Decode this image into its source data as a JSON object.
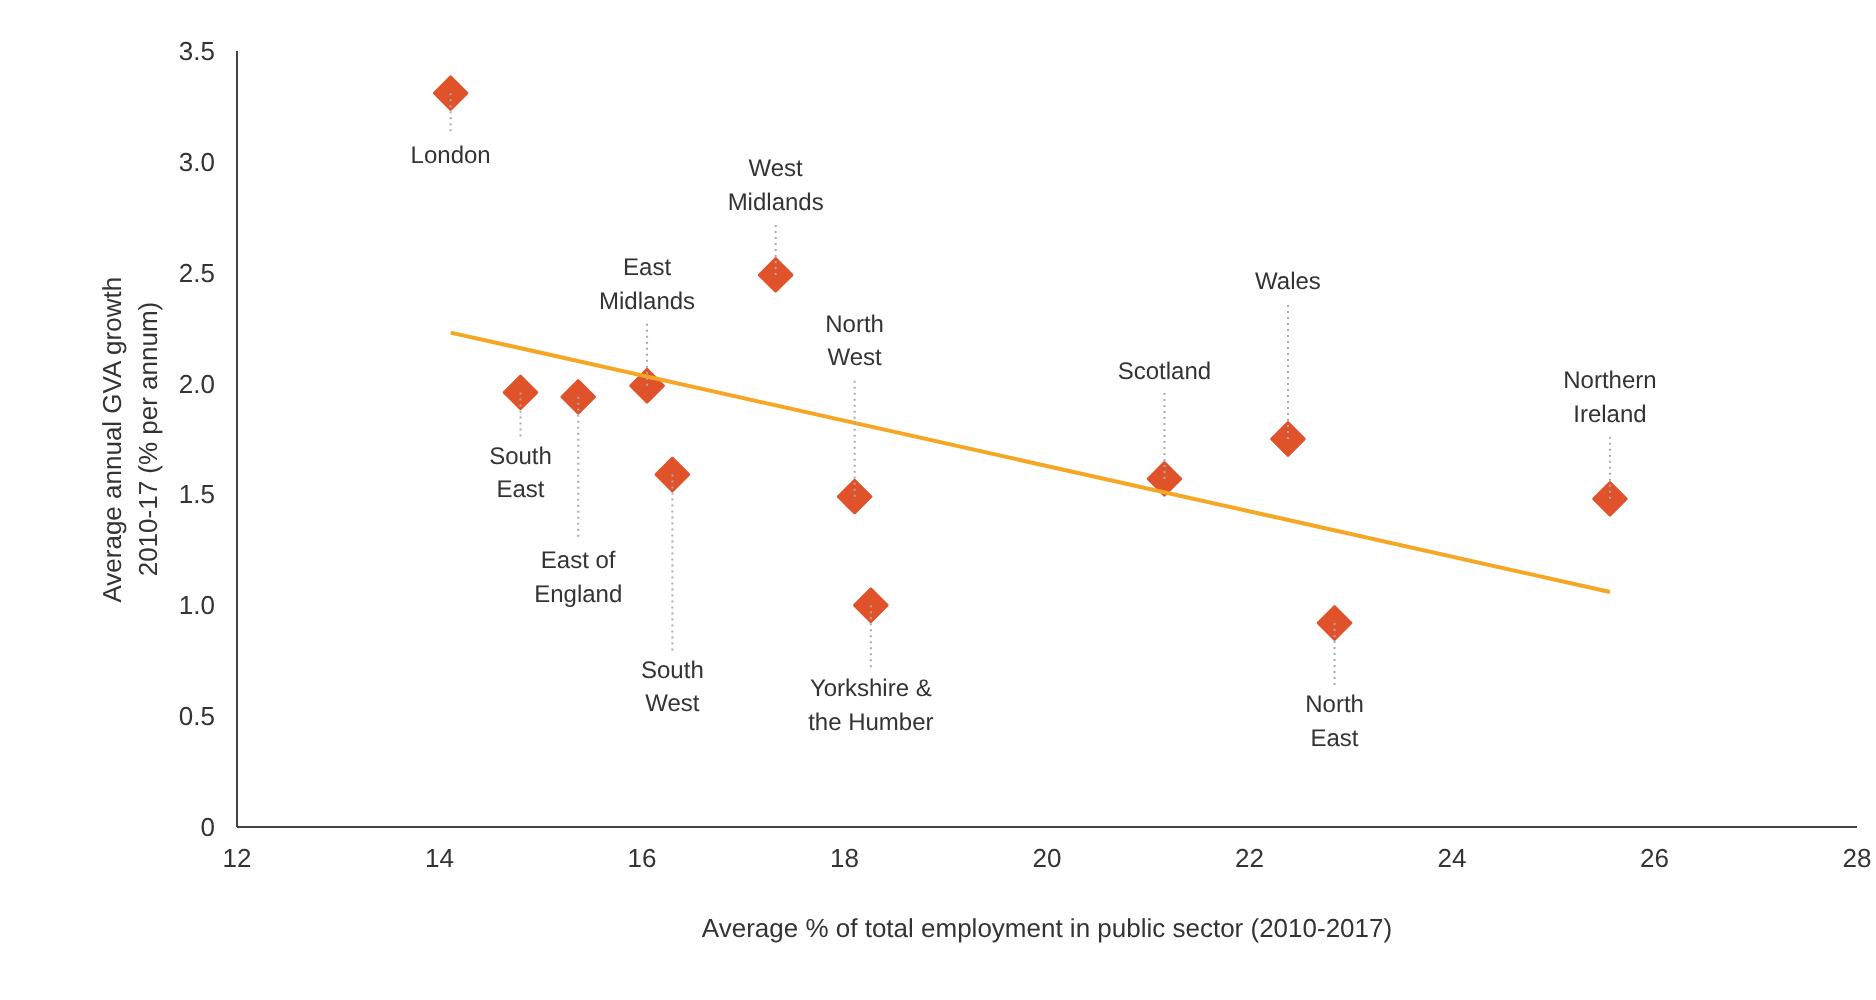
{
  "chart_data": {
    "type": "scatter",
    "xlabel": "Average % of total employment in public sector (2010-2017)",
    "ylabel": "Average annual GVA growth\n2010-17 (% per annum)",
    "xlim": [
      12,
      28
    ],
    "xticks": [
      12,
      14,
      16,
      18,
      20,
      22,
      24,
      26,
      28
    ],
    "ylim": [
      0,
      3.5
    ],
    "yticks": [
      0,
      0.5,
      {
        "value": 1,
        "label": "1.0"
      },
      1.5,
      {
        "value": 2,
        "label": "2.0"
      },
      2.5,
      {
        "value": 3,
        "label": "3.0"
      },
      3.5
    ],
    "grid": false,
    "marker": "diamond",
    "series": [
      {
        "color": "#e0522a",
        "x": [
          14.11,
          14.8,
          15.37,
          16.05,
          16.3,
          17.32,
          18.1,
          18.26,
          21.16,
          22.38,
          22.84,
          25.56
        ],
        "values": [
          3.31,
          1.96,
          1.94,
          1.99,
          1.59,
          2.49,
          1.49,
          1.0,
          1.57,
          1.75,
          0.92,
          1.48
        ]
      },
      {
        "type": "line",
        "marker": "none",
        "color": "#f5a623",
        "x": [
          14.11,
          25.56
        ],
        "values": [
          2.23,
          1.06
        ]
      }
    ],
    "annotations": [
      {
        "text": "London",
        "x": 14.11,
        "y": 3.31
      },
      {
        "text": "South\nEast",
        "x": 14.8,
        "y": 1.96
      },
      {
        "text": "East of\nEngland",
        "x": 15.37,
        "y": 1.94
      },
      {
        "text": "East\nMidlands",
        "x": 16.05,
        "y": 1.99
      },
      {
        "text": "South\nWest",
        "x": 16.3,
        "y": 1.59
      },
      {
        "text": "West\nMidlands",
        "x": 17.32,
        "y": 2.49
      },
      {
        "text": "North\nWest",
        "x": 18.1,
        "y": 1.49
      },
      {
        "text": "Yorkshire &\nthe Humber",
        "x": 18.26,
        "y": 1.0
      },
      {
        "text": "Scotland",
        "x": 21.16,
        "y": 1.57
      },
      {
        "text": "Wales",
        "x": 22.38,
        "y": 1.75
      },
      {
        "text": "North\nEast",
        "x": 22.84,
        "y": 0.92
      },
      {
        "text": "Northern\nIreland",
        "x": 25.56,
        "y": 1.48
      }
    ]
  }
}
